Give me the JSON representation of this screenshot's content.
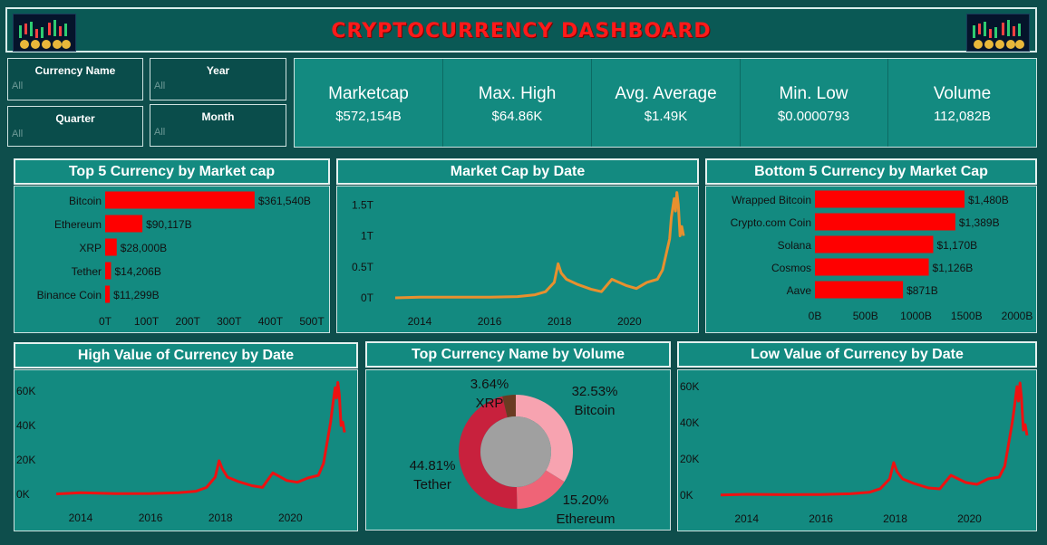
{
  "header": {
    "title": "CRYPTOCURRENCY DASHBOARD"
  },
  "filters": [
    {
      "label": "Currency Name",
      "value": "All"
    },
    {
      "label": "Year",
      "value": "All"
    },
    {
      "label": "Quarter",
      "value": "All"
    },
    {
      "label": "Month",
      "value": "All"
    }
  ],
  "kpis": [
    {
      "label": "Marketcap",
      "value": "$572,154B"
    },
    {
      "label": "Max. High",
      "value": "$64.86K"
    },
    {
      "label": "Avg. Average",
      "value": "$1.49K"
    },
    {
      "label": "Min. Low",
      "value": "$0.0000793"
    },
    {
      "label": "Volume",
      "value": "112,082B"
    }
  ],
  "colors": {
    "bar": "#ff0000",
    "line_market": "#e8902e",
    "line_high_low": "#ee1111",
    "panel": "#138a80",
    "title": "#ff1a1a"
  },
  "chart_data": [
    {
      "type": "bar",
      "title": "Top 5 Currency by Market cap",
      "categories": [
        "Bitcoin",
        "Ethereum",
        "XRP",
        "Tether",
        "Binance Coin"
      ],
      "values": [
        361540,
        90117,
        28000,
        14206,
        11299
      ],
      "data_labels": [
        "$361,540B",
        "$90,117B",
        "$28,000B",
        "$14,206B",
        "$11,299B"
      ],
      "xlim": [
        0,
        500000
      ],
      "x_ticks": [
        0,
        100000,
        200000,
        300000,
        400000,
        500000
      ],
      "x_tick_labels": [
        "0T",
        "100T",
        "200T",
        "300T",
        "400T",
        "500T"
      ]
    },
    {
      "type": "line",
      "title": "Market Cap by Date",
      "ylim": [
        0,
        1.65
      ],
      "y_ticks": [
        0,
        0.5,
        1,
        1.5
      ],
      "y_tick_labels": [
        "0T",
        "0.5T",
        "1T",
        "1.5T"
      ],
      "xlim": [
        2013.3,
        2021.6
      ],
      "x_ticks": [
        2014,
        2016,
        2018,
        2020
      ],
      "x_tick_labels": [
        "2014",
        "2016",
        "2018",
        "2020"
      ],
      "x": [
        2013.3,
        2014.0,
        2015.0,
        2016.0,
        2016.8,
        2017.3,
        2017.6,
        2017.85,
        2017.96,
        2018.05,
        2018.2,
        2018.5,
        2018.9,
        2019.2,
        2019.5,
        2019.9,
        2020.2,
        2020.5,
        2020.8,
        2020.95,
        2021.05,
        2021.15,
        2021.2,
        2021.28,
        2021.32,
        2021.36,
        2021.4,
        2021.45,
        2021.5,
        2021.55
      ],
      "y": [
        0.0,
        0.01,
        0.01,
        0.01,
        0.02,
        0.05,
        0.1,
        0.25,
        0.55,
        0.4,
        0.3,
        0.22,
        0.14,
        0.1,
        0.3,
        0.2,
        0.15,
        0.25,
        0.3,
        0.45,
        0.7,
        0.95,
        1.3,
        1.6,
        1.4,
        1.7,
        1.5,
        1.0,
        1.15,
        1.0
      ]
    },
    {
      "type": "bar",
      "title": "Bottom 5 Currency by Market Cap",
      "categories": [
        "Wrapped Bitcoin",
        "Crypto.com Coin",
        "Solana",
        "Cosmos",
        "Aave"
      ],
      "values": [
        1480,
        1389,
        1170,
        1126,
        871
      ],
      "data_labels": [
        "$1,480B",
        "$1,389B",
        "$1,170B",
        "$1,126B",
        "$871B"
      ],
      "xlim": [
        0,
        2000
      ],
      "x_ticks": [
        0,
        500,
        1000,
        1500,
        2000
      ],
      "x_tick_labels": [
        "0B",
        "500B",
        "1000B",
        "1500B",
        "2000B"
      ]
    },
    {
      "type": "line",
      "title": "High Value of Currency by Date",
      "ylim": [
        0,
        70
      ],
      "y_ticks": [
        0,
        20,
        40,
        60
      ],
      "y_tick_labels": [
        "0K",
        "20K",
        "40K",
        "60K"
      ],
      "xlim": [
        2013.3,
        2021.6
      ],
      "x_ticks": [
        2014,
        2016,
        2018,
        2020
      ],
      "x_tick_labels": [
        "2014",
        "2016",
        "2018",
        "2020"
      ],
      "x": [
        2013.3,
        2014.0,
        2015.0,
        2016.0,
        2016.8,
        2017.3,
        2017.6,
        2017.85,
        2017.96,
        2018.05,
        2018.2,
        2018.5,
        2018.9,
        2019.2,
        2019.5,
        2019.9,
        2020.2,
        2020.5,
        2020.8,
        2020.95,
        2021.05,
        2021.15,
        2021.2,
        2021.28,
        2021.32,
        2021.36,
        2021.4,
        2021.45,
        2021.5,
        2021.55
      ],
      "y": [
        0.2,
        0.9,
        0.4,
        0.5,
        0.9,
        1.8,
        4.0,
        10.0,
        19.5,
        15.0,
        10.0,
        7.5,
        5.0,
        4.0,
        12.5,
        8.0,
        7.0,
        9.5,
        11.0,
        18.0,
        30.0,
        42.0,
        50.0,
        62.0,
        56.0,
        65.0,
        58.0,
        40.0,
        42.0,
        36.0
      ]
    },
    {
      "type": "pie",
      "title": "Top Currency Name by Volume",
      "categories": [
        "Bitcoin",
        "Ethereum",
        "Tether",
        "XRP"
      ],
      "values": [
        32.53,
        15.2,
        44.81,
        3.64
      ],
      "data_labels": [
        "32.53%",
        "15.20%",
        "44.81%",
        "3.64%"
      ],
      "colors": [
        "#f7a3b0",
        "#ef6477",
        "#c8213d",
        "#6a3b22"
      ]
    },
    {
      "type": "line",
      "title": "Low Value of Currency by Date",
      "ylim": [
        0,
        65
      ],
      "y_ticks": [
        0,
        20,
        40,
        60
      ],
      "y_tick_labels": [
        "0K",
        "20K",
        "40K",
        "60K"
      ],
      "xlim": [
        2013.3,
        2021.6
      ],
      "x_ticks": [
        2014,
        2016,
        2018,
        2020
      ],
      "x_tick_labels": [
        "2014",
        "2016",
        "2018",
        "2020"
      ],
      "x": [
        2013.3,
        2014.0,
        2015.0,
        2016.0,
        2016.8,
        2017.3,
        2017.6,
        2017.85,
        2017.96,
        2018.05,
        2018.2,
        2018.5,
        2018.9,
        2019.2,
        2019.5,
        2019.9,
        2020.2,
        2020.5,
        2020.8,
        2020.95,
        2021.05,
        2021.15,
        2021.2,
        2021.28,
        2021.32,
        2021.36,
        2021.4,
        2021.45,
        2021.5,
        2021.55
      ],
      "y": [
        0.1,
        0.5,
        0.3,
        0.4,
        0.8,
        1.6,
        3.6,
        9.0,
        18.0,
        13.0,
        9.0,
        6.5,
        4.0,
        3.5,
        11.0,
        7.0,
        6.0,
        9.0,
        10.0,
        16.0,
        28.0,
        40.0,
        47.0,
        60.0,
        52.0,
        62.0,
        54.0,
        36.0,
        39.0,
        33.0
      ]
    }
  ]
}
